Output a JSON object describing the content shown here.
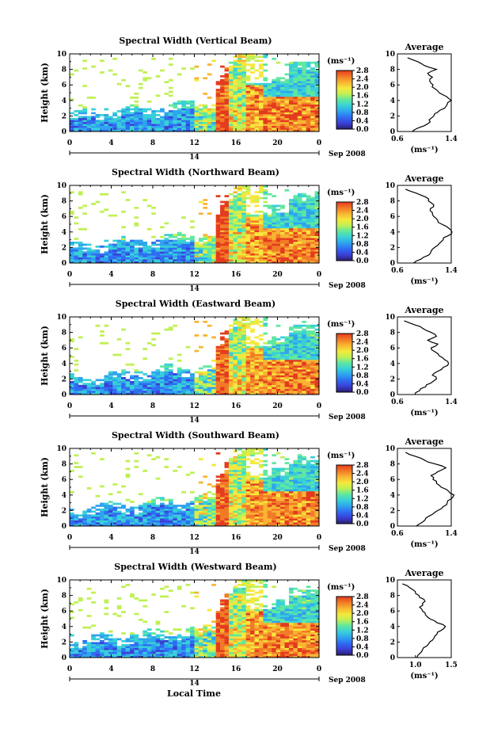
{
  "figure": {
    "xlabel": "Local Time",
    "colorbar_unit": "(ms⁻¹)",
    "colorbar_ticks": [
      "2.8",
      "2.4",
      "2.0",
      "1.6",
      "1.2",
      "0.8",
      "0.4",
      "0.0"
    ],
    "colorbar_range": [
      0.0,
      2.8
    ],
    "panel_ylabel": "Height (km)",
    "y_ticks": [
      "0",
      "2",
      "4",
      "6",
      "8",
      "10"
    ],
    "x_ticks": [
      "0",
      "4",
      "8",
      "12",
      "16",
      "20",
      "0"
    ],
    "date_day": "14",
    "date_month_year": "Sep 2008",
    "profile_title": "Average",
    "profile_xlabel": "(ms⁻¹)",
    "colors": {
      "cmap": [
        "#2b1e6e",
        "#3a3fd6",
        "#2f6cf2",
        "#2fa3ee",
        "#38d0d8",
        "#5fe7a0",
        "#bff054",
        "#f6e83c",
        "#f8b432",
        "#f27a26",
        "#e43a1e"
      ]
    }
  },
  "chart_data": [
    {
      "type": "heatmap",
      "title": "Spectral Width (Vertical Beam)",
      "x_range": [
        0,
        24
      ],
      "y_range": [
        0,
        10
      ],
      "profile": {
        "type": "line",
        "title": "Average",
        "xticks": [
          "0.6",
          "1.4"
        ],
        "xlim": [
          0.6,
          1.4
        ],
        "height": [
          0,
          0.5,
          1,
          1.5,
          2,
          2.5,
          3,
          3.5,
          4,
          4.5,
          5,
          5.5,
          6,
          6.5,
          7,
          7.5,
          8,
          8.5,
          9,
          9.5
        ],
        "values": [
          0.82,
          0.92,
          1.05,
          1.07,
          1.14,
          1.2,
          1.3,
          1.34,
          1.4,
          1.33,
          1.22,
          1.16,
          1.13,
          1.08,
          1.12,
          1.05,
          1.18,
          1.0,
          0.9,
          0.75
        ]
      }
    },
    {
      "type": "heatmap",
      "title": "Spectral Width (Northward Beam)",
      "x_range": [
        0,
        24
      ],
      "y_range": [
        0,
        10
      ],
      "profile": {
        "type": "line",
        "title": "Average",
        "xticks": [
          "0.6",
          "1.4"
        ],
        "xlim": [
          0.6,
          1.4
        ],
        "height": [
          0,
          0.5,
          1,
          1.5,
          2,
          2.5,
          3,
          3.5,
          4,
          4.5,
          5,
          5.5,
          6,
          6.5,
          7,
          7.5,
          8,
          8.5,
          9,
          9.5
        ],
        "values": [
          0.84,
          0.95,
          1.06,
          1.1,
          1.15,
          1.22,
          1.28,
          1.35,
          1.41,
          1.36,
          1.26,
          1.2,
          1.14,
          1.12,
          1.09,
          1.14,
          1.06,
          1.02,
          0.88,
          0.72
        ]
      }
    },
    {
      "type": "heatmap",
      "title": "Spectral Width (Eastward Beam)",
      "x_range": [
        0,
        24
      ],
      "y_range": [
        0,
        10
      ],
      "profile": {
        "type": "line",
        "title": "Average",
        "xticks": [
          "0.6",
          "1.4"
        ],
        "xlim": [
          0.6,
          1.4
        ],
        "height": [
          0,
          0.5,
          1,
          1.5,
          2,
          2.5,
          3,
          3.5,
          4,
          4.5,
          5,
          5.5,
          6,
          6.5,
          7,
          7.5,
          8,
          8.5,
          9,
          9.5
        ],
        "values": [
          0.86,
          0.93,
          1.02,
          1.1,
          1.18,
          1.12,
          1.2,
          1.28,
          1.36,
          1.3,
          1.22,
          1.16,
          1.1,
          1.2,
          1.05,
          1.18,
          1.1,
          0.98,
          0.85,
          0.7
        ]
      }
    },
    {
      "type": "heatmap",
      "title": "Spectral Width (Southward Beam)",
      "x_range": [
        0,
        24
      ],
      "y_range": [
        0,
        10
      ],
      "profile": {
        "type": "line",
        "title": "Average",
        "xticks": [
          "0.6",
          "1.4"
        ],
        "xlim": [
          0.6,
          1.4
        ],
        "height": [
          0,
          0.5,
          1,
          1.5,
          2,
          2.5,
          3,
          3.5,
          4,
          4.5,
          5,
          5.5,
          6,
          6.5,
          7,
          7.5,
          8,
          8.5,
          9,
          9.5
        ],
        "values": [
          0.88,
          0.97,
          1.02,
          1.12,
          1.2,
          1.28,
          1.34,
          1.4,
          1.44,
          1.36,
          1.25,
          1.18,
          1.13,
          1.1,
          1.2,
          1.32,
          1.16,
          1.0,
          0.86,
          0.72
        ]
      }
    },
    {
      "type": "heatmap",
      "title": "Spectral Width (Westward Beam)",
      "x_range": [
        0,
        24
      ],
      "y_range": [
        0,
        10
      ],
      "profile": {
        "type": "line",
        "title": "Average",
        "xticks": [
          "1.0",
          "1.5"
        ],
        "xlim": [
          0.75,
          1.5
        ],
        "height": [
          0,
          0.5,
          1,
          1.5,
          2,
          2.5,
          3,
          3.5,
          4,
          4.5,
          5,
          5.5,
          6,
          6.5,
          7,
          7.5,
          8,
          8.5,
          9,
          9.5
        ],
        "values": [
          1.02,
          1.06,
          1.1,
          1.16,
          1.2,
          1.26,
          1.3,
          1.36,
          1.42,
          1.3,
          1.2,
          1.14,
          1.1,
          1.06,
          1.1,
          1.12,
          1.05,
          1.0,
          0.92,
          0.82
        ]
      }
    }
  ]
}
